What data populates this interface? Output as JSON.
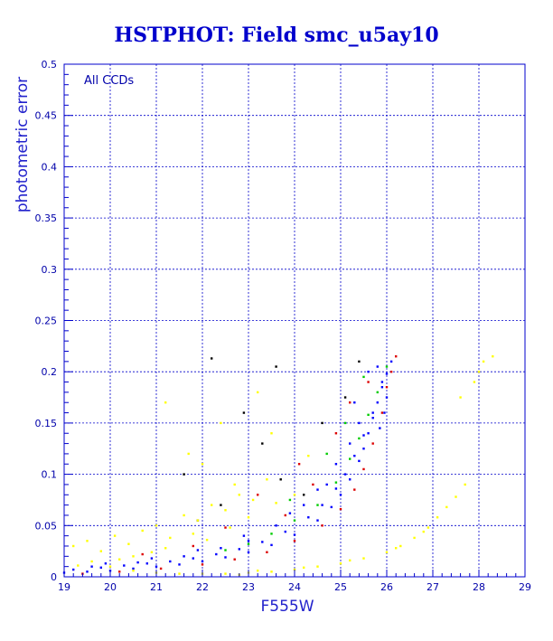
{
  "chart_data": {
    "type": "scatter",
    "title": "HSTPHOT: Field smc_u5ay10",
    "xlabel": "F555W",
    "ylabel": "photometric error",
    "annotation": "All CCDs",
    "xlim": [
      19,
      29
    ],
    "ylim": [
      0,
      0.5
    ],
    "x_ticks": [
      "19",
      "20",
      "21",
      "22",
      "23",
      "24",
      "25",
      "26",
      "27",
      "28",
      "29"
    ],
    "y_ticks": [
      "0",
      "0.05",
      "0.1",
      "0.15",
      "0.2",
      "0.25",
      "0.3",
      "0.35",
      "0.4",
      "0.45",
      "0.5"
    ],
    "grid": true,
    "legend": "none",
    "series": [
      {
        "color": "#0000ff",
        "points": [
          [
            19.0,
            0.004
          ],
          [
            19.5,
            0.005
          ],
          [
            20.0,
            0.006
          ],
          [
            20.5,
            0.008
          ],
          [
            21.0,
            0.01
          ],
          [
            21.5,
            0.012
          ],
          [
            22.0,
            0.015
          ],
          [
            22.5,
            0.019
          ],
          [
            23.0,
            0.024
          ],
          [
            23.5,
            0.031
          ],
          [
            24.0,
            0.041
          ],
          [
            24.5,
            0.055
          ],
          [
            24.8,
            0.068
          ],
          [
            25.0,
            0.08
          ],
          [
            25.2,
            0.095
          ],
          [
            25.4,
            0.113
          ],
          [
            25.5,
            0.125
          ],
          [
            25.6,
            0.14
          ],
          [
            25.7,
            0.155
          ],
          [
            25.8,
            0.17
          ],
          [
            25.9,
            0.185
          ],
          [
            26.0,
            0.198
          ],
          [
            26.1,
            0.21
          ],
          [
            19.2,
            0.007
          ],
          [
            19.8,
            0.009
          ],
          [
            20.3,
            0.011
          ],
          [
            20.8,
            0.013
          ],
          [
            21.3,
            0.015
          ],
          [
            21.8,
            0.018
          ],
          [
            22.3,
            0.022
          ],
          [
            22.8,
            0.027
          ],
          [
            23.3,
            0.034
          ],
          [
            23.8,
            0.044
          ],
          [
            24.3,
            0.058
          ],
          [
            24.6,
            0.07
          ],
          [
            24.9,
            0.086
          ],
          [
            25.1,
            0.1
          ],
          [
            25.3,
            0.118
          ],
          [
            25.5,
            0.138
          ],
          [
            25.7,
            0.16
          ],
          [
            25.9,
            0.19
          ],
          [
            25.6,
            0.2
          ],
          [
            25.4,
            0.15
          ],
          [
            25.2,
            0.13
          ],
          [
            24.7,
            0.09
          ],
          [
            24.2,
            0.07
          ],
          [
            23.6,
            0.05
          ],
          [
            23.0,
            0.035
          ],
          [
            22.4,
            0.028
          ],
          [
            21.6,
            0.02
          ],
          [
            20.6,
            0.014
          ],
          [
            19.6,
            0.01
          ],
          [
            25.8,
            0.205
          ],
          [
            26.0,
            0.175
          ],
          [
            25.95,
            0.16
          ],
          [
            25.85,
            0.145
          ],
          [
            24.9,
            0.11
          ],
          [
            25.3,
            0.17
          ],
          [
            24.5,
            0.085
          ],
          [
            23.9,
            0.062
          ],
          [
            22.9,
            0.04
          ],
          [
            21.9,
            0.026
          ],
          [
            20.9,
            0.018
          ],
          [
            19.9,
            0.013
          ]
        ]
      },
      {
        "color": "#dd0000",
        "points": [
          [
            19.4,
            0.003
          ],
          [
            20.2,
            0.005
          ],
          [
            21.1,
            0.008
          ],
          [
            22.0,
            0.012
          ],
          [
            22.7,
            0.017
          ],
          [
            23.4,
            0.024
          ],
          [
            24.0,
            0.035
          ],
          [
            24.6,
            0.05
          ],
          [
            25.0,
            0.066
          ],
          [
            25.3,
            0.085
          ],
          [
            25.5,
            0.105
          ],
          [
            25.7,
            0.13
          ],
          [
            25.9,
            0.16
          ],
          [
            26.0,
            0.185
          ],
          [
            26.1,
            0.2
          ],
          [
            26.2,
            0.215
          ],
          [
            23.8,
            0.06
          ],
          [
            24.4,
            0.09
          ],
          [
            22.5,
            0.048
          ],
          [
            21.8,
            0.03
          ],
          [
            24.9,
            0.14
          ],
          [
            25.2,
            0.17
          ],
          [
            23.2,
            0.08
          ],
          [
            24.1,
            0.11
          ],
          [
            25.6,
            0.19
          ],
          [
            20.7,
            0.022
          ]
        ]
      },
      {
        "color": "#00cc00",
        "points": [
          [
            24.5,
            0.07
          ],
          [
            24.9,
            0.092
          ],
          [
            25.2,
            0.115
          ],
          [
            25.4,
            0.135
          ],
          [
            25.6,
            0.158
          ],
          [
            25.8,
            0.18
          ],
          [
            26.0,
            0.205
          ],
          [
            24.0,
            0.055
          ],
          [
            23.5,
            0.042
          ],
          [
            23.0,
            0.032
          ],
          [
            22.5,
            0.026
          ],
          [
            25.1,
            0.15
          ],
          [
            24.7,
            0.12
          ],
          [
            25.5,
            0.195
          ],
          [
            23.9,
            0.075
          ]
        ]
      },
      {
        "color": "#000000",
        "points": [
          [
            21.6,
            0.1
          ],
          [
            22.4,
            0.07
          ],
          [
            22.9,
            0.16
          ],
          [
            23.3,
            0.13
          ],
          [
            23.7,
            0.095
          ],
          [
            24.2,
            0.08
          ],
          [
            24.6,
            0.15
          ],
          [
            25.1,
            0.175
          ],
          [
            25.4,
            0.21
          ],
          [
            21.9,
            0.055
          ],
          [
            22.2,
            0.213
          ],
          [
            23.6,
            0.205
          ]
        ]
      },
      {
        "color": "#ffff00",
        "points": [
          [
            19.2,
            0.03
          ],
          [
            19.5,
            0.035
          ],
          [
            19.8,
            0.025
          ],
          [
            20.1,
            0.04
          ],
          [
            20.4,
            0.032
          ],
          [
            20.7,
            0.045
          ],
          [
            21.0,
            0.05
          ],
          [
            21.3,
            0.038
          ],
          [
            21.6,
            0.06
          ],
          [
            21.9,
            0.055
          ],
          [
            22.2,
            0.07
          ],
          [
            22.5,
            0.065
          ],
          [
            22.8,
            0.08
          ],
          [
            23.1,
            0.075
          ],
          [
            23.4,
            0.095
          ],
          [
            21.2,
            0.028
          ],
          [
            21.8,
            0.042
          ],
          [
            22.6,
            0.048
          ],
          [
            23.0,
            0.058
          ],
          [
            23.6,
            0.072
          ],
          [
            24.0,
            0.08
          ],
          [
            22.0,
            0.11
          ],
          [
            22.4,
            0.15
          ],
          [
            23.2,
            0.18
          ],
          [
            23.5,
            0.14
          ],
          [
            21.7,
            0.12
          ],
          [
            20.5,
            0.02
          ],
          [
            19.6,
            0.015
          ],
          [
            20.9,
            0.024
          ],
          [
            22.1,
            0.036
          ],
          [
            20.0,
            0.01
          ],
          [
            20.5,
            0.006
          ],
          [
            21.0,
            0.004
          ],
          [
            21.5,
            0.003
          ],
          [
            22.0,
            0.003
          ],
          [
            22.5,
            0.003
          ],
          [
            23.0,
            0.004
          ],
          [
            23.5,
            0.005
          ],
          [
            24.0,
            0.007
          ],
          [
            24.5,
            0.01
          ],
          [
            25.0,
            0.013
          ],
          [
            25.5,
            0.018
          ],
          [
            26.0,
            0.024
          ],
          [
            26.3,
            0.03
          ],
          [
            26.6,
            0.038
          ],
          [
            26.9,
            0.048
          ],
          [
            27.1,
            0.058
          ],
          [
            27.3,
            0.068
          ],
          [
            27.5,
            0.078
          ],
          [
            27.7,
            0.09
          ],
          [
            23.2,
            0.006
          ],
          [
            24.2,
            0.009
          ],
          [
            25.2,
            0.016
          ],
          [
            26.2,
            0.028
          ],
          [
            26.8,
            0.044
          ],
          [
            22.8,
            0.002
          ],
          [
            28.1,
            0.21
          ],
          [
            28.3,
            0.215
          ],
          [
            28.0,
            0.2
          ],
          [
            27.6,
            0.175
          ],
          [
            27.9,
            0.19
          ],
          [
            21.2,
            0.17
          ],
          [
            24.3,
            0.118
          ],
          [
            22.7,
            0.09
          ],
          [
            19.3,
            0.011
          ],
          [
            20.2,
            0.017
          ]
        ]
      }
    ]
  }
}
